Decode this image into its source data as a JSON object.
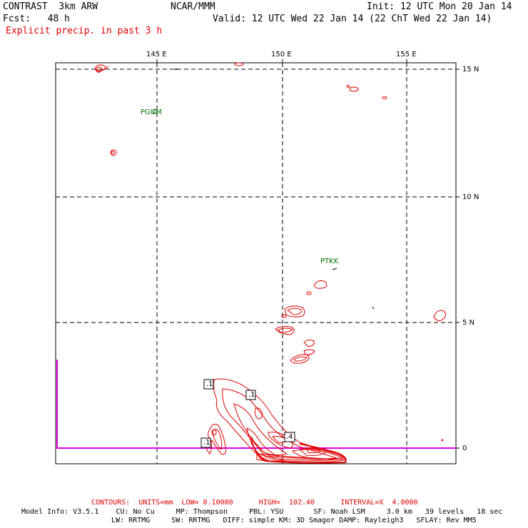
{
  "header": {
    "title": "CONTRAST  3km ARW",
    "org": "NCAR/MMM",
    "init": "Init: 12 UTC Mon 20 Jan 14",
    "fcst": "Fcst:   48 h",
    "valid": "Valid: 12 UTC Wed 22 Jan 14 (22 ChT Wed 22 Jan 14)",
    "field": "Explicit precip. in past 3 h"
  },
  "map": {
    "lon_labels": [
      "145 E",
      "150 E",
      "155 E"
    ],
    "lat_labels": [
      "15 N",
      "10 N",
      "5 N",
      "0"
    ],
    "stations": [
      "PGUM",
      "PTKK"
    ],
    "contour_labels": [
      ".1",
      ".1",
      ".1",
      ".4"
    ]
  },
  "footer": {
    "contours": "CONTOURS:  UNITS=mm  LOW= 0.10000      HIGH=  102.40      INTERVAL=X  4.0000",
    "model_line1": "Model Info: V3.5.1    CU: No Cu     MP: Thompson     PBL: YSU       SF: Noah LSM     3.0 km   39 levels   18 sec",
    "model_line2": "LW: RRTMG     SW: RRTMG   DIFF: simple KM: 3D Smagor DAMP: Rayleigh3   SFLAY: Rev MM5"
  },
  "colors": {
    "contour": "#e00000",
    "station": "#007000",
    "boundary": "#e000e0"
  }
}
